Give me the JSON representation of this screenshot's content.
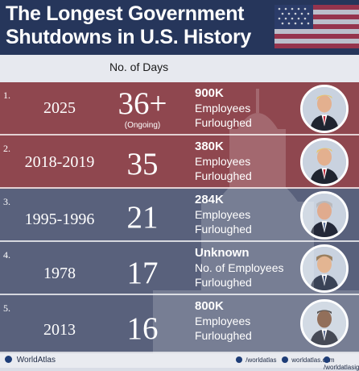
{
  "header": {
    "title_line1": "The Longest  Government",
    "title_line2": "Shutdowns in U.S. History"
  },
  "column_label": "No. of Days",
  "rows": [
    {
      "rank": "1.",
      "years": "2025",
      "days": "36+",
      "note": "(Ongoing)",
      "count": "900K",
      "line1": "Employees",
      "line2": "Furloughed",
      "color": "#893942"
    },
    {
      "rank": "2.",
      "years": "2018-2019",
      "days": "35",
      "note": "",
      "count": "380K",
      "line1": "Employees",
      "line2": "Furloughed",
      "color": "#893942"
    },
    {
      "rank": "3.",
      "years": "1995-1996",
      "days": "21",
      "note": "",
      "count": "284K",
      "line1": "Employees",
      "line2": "Furloughed",
      "color": "#4a5370"
    },
    {
      "rank": "4.",
      "years": "1978",
      "days": "17",
      "note": "",
      "count": "Unknown",
      "line1": "No. of Employees",
      "line2": "Furloughed",
      "color": "#4a5370"
    },
    {
      "rank": "5.",
      "years": "2013",
      "days": "16",
      "note": "",
      "count": "800K",
      "line1": "Employees",
      "line2": "Furloughed",
      "color": "#4a5370"
    }
  ],
  "footer": {
    "brand": "WorldAtlas",
    "social_1": "/worldatlas",
    "social_2": "worldatlas.com",
    "social_3": "/worldatlasig"
  },
  "colors": {
    "header_bg": "#26365b",
    "red_row": "#893942",
    "blue_row": "#4a5370"
  }
}
